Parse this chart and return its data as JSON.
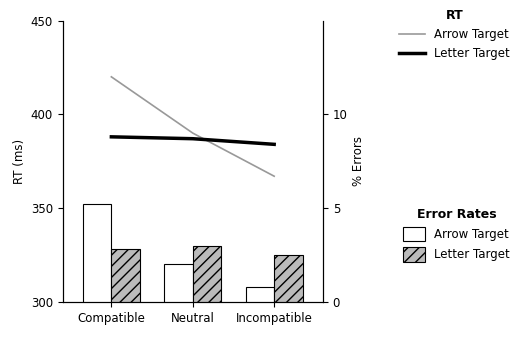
{
  "categories": [
    "Compatible",
    "Neutral",
    "Incompatible"
  ],
  "bar_arrow_rt": [
    352,
    320,
    308
  ],
  "bar_letter_rt": [
    328,
    330,
    325
  ],
  "line_arrow_rt": [
    420,
    390,
    367
  ],
  "line_letter_rt": [
    388,
    387,
    384
  ],
  "rt_ylim": [
    300,
    450
  ],
  "rt_yticks": [
    300,
    350,
    400,
    450
  ],
  "err_ylim": [
    0,
    15
  ],
  "err_yticks": [
    0,
    5,
    10
  ],
  "ylabel_left": "RT (ms)",
  "ylabel_right": "% Errors",
  "bg_color": "#ffffff",
  "bar_arrow_color": "#ffffff",
  "bar_letter_hatch": "///",
  "bar_letter_color": "#bbbbbb",
  "line_arrow_color": "#999999",
  "line_letter_color": "#000000",
  "bar_edge_color": "#000000",
  "bar_width": 0.35,
  "line_lw_arrow": 1.2,
  "line_lw_letter": 2.5,
  "legend_rt_title": "RT",
  "legend_err_title": "Error Rates",
  "legend_arrow_label": "Arrow Target",
  "legend_letter_label": "Letter Target",
  "font_size": 8.5
}
